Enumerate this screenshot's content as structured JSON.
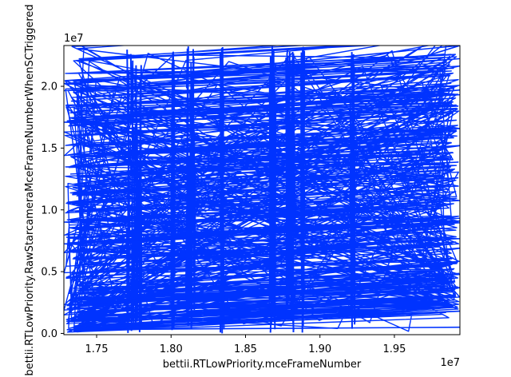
{
  "chart_data": {
    "type": "line",
    "title": "",
    "xlabel": "bettii.RTLowPriority.mceFrameNumber",
    "ylabel": "bettii.RTLowPriority.RawStarcameraMceFrameNumberWhenSCTriggered",
    "x_offset_label": "1e7",
    "y_offset_label": "1e7",
    "xlim": [
      17280000,
      19940000
    ],
    "ylim": [
      -100000,
      23300000
    ],
    "xticks": [
      17500000,
      18000000,
      18500000,
      19000000,
      19500000
    ],
    "xtick_labels": [
      "1.75",
      "1.80",
      "1.85",
      "1.90",
      "1.95"
    ],
    "yticks": [
      0,
      5000000,
      10000000,
      15000000,
      20000000
    ],
    "ytick_labels": [
      "0.0",
      "0.5",
      "1.0",
      "1.5",
      "2.0"
    ],
    "grid": false,
    "legend": "none",
    "series": [
      {
        "color": "#0033ff",
        "description_of_shape": "dense zigzag trace: many near-horizontal jumps across the full x range at y ≈ 0 to 2.3e7 interleaved with vertical strokes",
        "x": [
          17300000,
          19940000,
          17310000,
          19930000,
          17300000,
          19940000,
          17320000,
          19940000,
          17300000,
          19930000,
          17300000,
          19940000,
          17330000,
          19940000,
          17300000,
          19940000,
          17350000,
          19940000,
          17300000,
          19940000
        ],
        "y": [
          17200000,
          19700000,
          16800000,
          18400000,
          20200000,
          23300000,
          13500000,
          15200000,
          10600000,
          12600000,
          7200000,
          9100000,
          4800000,
          6900000,
          2000000,
          3700000,
          600000,
          1800000,
          300000,
          500000
        ]
      }
    ]
  }
}
